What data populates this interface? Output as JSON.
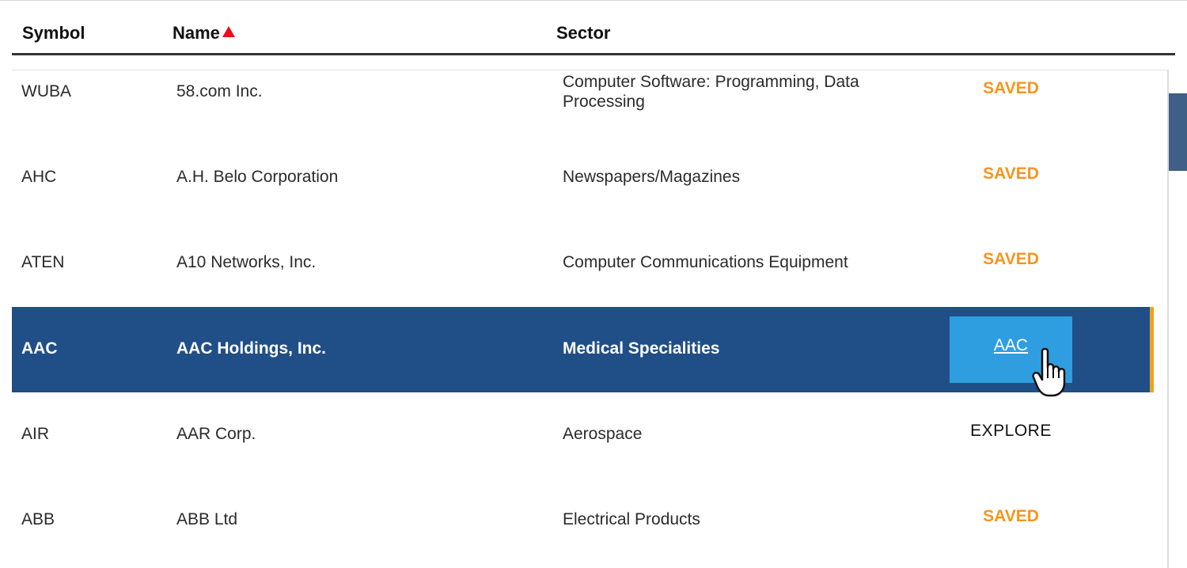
{
  "table": {
    "columns": [
      {
        "label": "Symbol"
      },
      {
        "label": "Name",
        "sorted": "ascending"
      },
      {
        "label": "Sector"
      }
    ],
    "rows": [
      {
        "symbol": "WUBA",
        "name": "58.com Inc.",
        "sector": "Computer Software: Programming, Data Processing",
        "action": "SAVED"
      },
      {
        "symbol": "AHC",
        "name": "A.H. Belo Corporation",
        "sector": "Newspapers/Magazines",
        "action": "SAVED"
      },
      {
        "symbol": "ATEN",
        "name": "A10 Networks, Inc.",
        "sector": "Computer Communications Equipment",
        "action": "SAVED"
      },
      {
        "symbol": "AAC",
        "name": "AAC Holdings, Inc.",
        "sector": "Medical Specialities",
        "action": "AAC",
        "selected": true
      },
      {
        "symbol": "AIR",
        "name": "AAR Corp.",
        "sector": "Aerospace",
        "action": "EXPLORE"
      },
      {
        "symbol": "ABB",
        "name": "ABB Ltd",
        "sector": "Electrical Products",
        "action": "SAVED"
      }
    ]
  },
  "icons": {
    "sort": "sort-ascending-icon",
    "cursor": "hand-pointer-icon"
  },
  "colors": {
    "selected_row": "#204f87",
    "selected_accent": "#f0a21c",
    "action_button": "#2f9ee0",
    "saved": "#f7941d",
    "sort_indicator": "#e8101a",
    "scroll_thumb": "#3f5f86"
  }
}
